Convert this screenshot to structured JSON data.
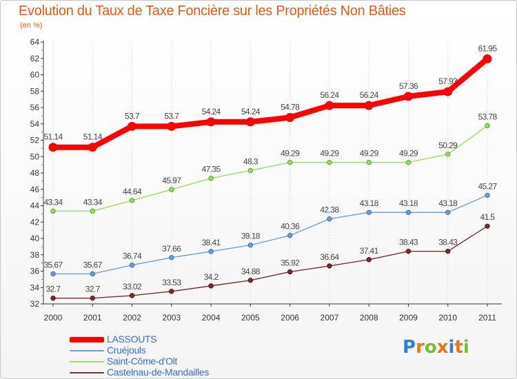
{
  "title": "Evolution du Taux de Taxe Foncière sur les Propriétés Non Bâties",
  "unit_label": "(en %)",
  "chart_data": {
    "type": "line",
    "title": "Evolution du Taux de Taxe Foncière sur les Propriétés Non Bâties",
    "ylabel": "(en %)",
    "xlabel": "",
    "x": [
      "2000",
      "2001",
      "2002",
      "2003",
      "2004",
      "2005",
      "2006",
      "2007",
      "2008",
      "2009",
      "2010",
      "2011"
    ],
    "ylim": [
      32,
      64
    ],
    "yticks": [
      32,
      34,
      36,
      38,
      40,
      42,
      44,
      46,
      48,
      50,
      52,
      54,
      56,
      58,
      60,
      62,
      64
    ],
    "grid": "vertical-dotted",
    "legend_position": "bottom-left",
    "series": [
      {
        "name": "LASSOUTS",
        "color": "#ff0000",
        "values": [
          51.14,
          51.14,
          53.7,
          53.7,
          54.24,
          54.24,
          54.78,
          56.24,
          56.24,
          57.36,
          57.93,
          61.95
        ],
        "labels": [
          "51.14",
          "51.14",
          "53.7",
          "53.7",
          "54.24",
          "54.24",
          "54.78",
          "56.24",
          "56.24",
          "57.36",
          "57.93",
          "61.95"
        ]
      },
      {
        "name": "Cruéjouls",
        "color": "#6f9fcf",
        "values": [
          35.67,
          35.67,
          36.74,
          37.66,
          38.41,
          39.18,
          40.36,
          42.38,
          43.18,
          43.18,
          43.18,
          45.27
        ],
        "labels": [
          "35.67",
          "35.67",
          "36.74",
          "37.66",
          "38.41",
          "39.18",
          "40.36",
          "42.38",
          "43.18",
          "43.18",
          "43.18",
          "45.27"
        ]
      },
      {
        "name": "Saint-Côme-d'Olt",
        "color": "#99dd66",
        "values": [
          43.34,
          43.34,
          44.64,
          45.97,
          47.35,
          48.3,
          49.29,
          49.29,
          49.29,
          49.29,
          50.29,
          53.78
        ],
        "labels": [
          "43.34",
          "43.34",
          "44.64",
          "45.97",
          "47.35",
          "48.3",
          "49.29",
          "49.29",
          "49.29",
          "49.29",
          "50.29",
          "53.78"
        ]
      },
      {
        "name": "Castelnau-de-Mandailles",
        "color": "#7a2e2e",
        "values": [
          32.7,
          32.7,
          33.02,
          33.53,
          34.2,
          34.88,
          35.92,
          36.64,
          37.41,
          38.43,
          38.43,
          41.5
        ],
        "labels": [
          "32.7",
          "32.7",
          "33.02",
          "33.53",
          "34.2",
          "34.88",
          "35.92",
          "36.64",
          "37.41",
          "38.43",
          "38.43",
          "41.5"
        ]
      }
    ]
  },
  "logo": {
    "text": "Proxiti",
    "letter_colors": [
      "#2f7fd0",
      "#e8761c",
      "#7ab83a",
      "#e8761c",
      "#2f7fd0",
      "#e8761c",
      "#7ab83a"
    ]
  }
}
